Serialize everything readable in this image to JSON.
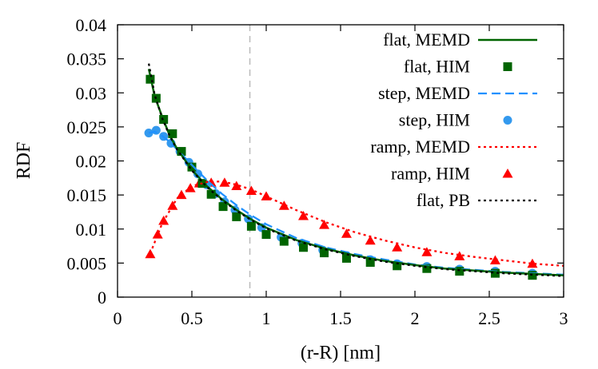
{
  "chart_data": {
    "type": "line",
    "xlabel": "(r-R) [nm]",
    "ylabel": "RDF",
    "xlim": [
      0,
      3
    ],
    "ylim": [
      0,
      0.04
    ],
    "x_ticks": [
      "0",
      "0.5",
      "1",
      "1.5",
      "2",
      "2.5",
      "3"
    ],
    "y_ticks": [
      "0",
      "0.005",
      "0.01",
      "0.015",
      "0.02",
      "0.025",
      "0.03",
      "0.035",
      "0.04"
    ],
    "grid": false,
    "legend_position": "top-right",
    "reference_line": {
      "x": 0.89,
      "style": "dashed",
      "color": "#bbbbbb"
    },
    "series": [
      {
        "name": "flat, MEMD",
        "style": "solid",
        "marker": "none",
        "color": "#006400",
        "x": [
          0.21,
          0.25,
          0.3,
          0.35,
          0.4,
          0.5,
          0.6,
          0.7,
          0.8,
          0.9,
          1.0,
          1.2,
          1.4,
          1.6,
          1.8,
          2.0,
          2.2,
          2.4,
          2.6,
          2.8,
          3.0
        ],
        "y": [
          0.0335,
          0.0295,
          0.0265,
          0.0238,
          0.0218,
          0.0187,
          0.0163,
          0.0144,
          0.0128,
          0.0114,
          0.0102,
          0.0084,
          0.0071,
          0.0061,
          0.0053,
          0.0047,
          0.0042,
          0.0039,
          0.0036,
          0.0034,
          0.0032
        ]
      },
      {
        "name": "flat, HIM",
        "style": "none",
        "marker": "square",
        "color": "#006400",
        "x": [
          0.22,
          0.26,
          0.31,
          0.37,
          0.43,
          0.5,
          0.57,
          0.63,
          0.71,
          0.8,
          0.9,
          1.0,
          1.12,
          1.25,
          1.39,
          1.54,
          1.7,
          1.88,
          2.08,
          2.3,
          2.54,
          2.79
        ],
        "y": [
          0.032,
          0.0292,
          0.0261,
          0.024,
          0.0214,
          0.0191,
          0.0167,
          0.0151,
          0.0133,
          0.0118,
          0.0104,
          0.0092,
          0.0082,
          0.0073,
          0.0065,
          0.0057,
          0.0051,
          0.0046,
          0.0042,
          0.0038,
          0.0035,
          0.0032
        ]
      },
      {
        "name": "step, MEMD",
        "style": "dashed",
        "marker": "none",
        "color": "#1e90ff",
        "x": [
          0.21,
          0.25,
          0.3,
          0.35,
          0.4,
          0.5,
          0.6,
          0.7,
          0.8,
          0.9,
          1.0,
          1.2,
          1.4,
          1.6,
          1.8,
          2.0,
          2.2,
          2.4,
          2.6,
          2.8,
          3.0
        ],
        "y": [
          0.0241,
          0.0243,
          0.0237,
          0.0228,
          0.0217,
          0.0194,
          0.0172,
          0.0152,
          0.0135,
          0.012,
          0.0107,
          0.0087,
          0.0073,
          0.0063,
          0.0055,
          0.0048,
          0.0043,
          0.004,
          0.0037,
          0.0035,
          0.0033
        ]
      },
      {
        "name": "step, HIM",
        "style": "none",
        "marker": "circle",
        "color": "#3399ee",
        "x": [
          0.21,
          0.26,
          0.31,
          0.36,
          0.42,
          0.48,
          0.54,
          0.6,
          0.66,
          0.72,
          0.79,
          0.88,
          0.97,
          1.1,
          1.24,
          1.38,
          1.54,
          1.7,
          1.88,
          2.08,
          2.3,
          2.54,
          2.79
        ],
        "y": [
          0.0241,
          0.0245,
          0.0236,
          0.0226,
          0.0214,
          0.0198,
          0.0181,
          0.0165,
          0.0152,
          0.014,
          0.0128,
          0.0115,
          0.0102,
          0.0088,
          0.0079,
          0.0069,
          0.0061,
          0.0055,
          0.0049,
          0.0045,
          0.0041,
          0.0038,
          0.0035
        ]
      },
      {
        "name": "ramp, MEMD",
        "style": "dotted",
        "marker": "none",
        "color": "#ff0000",
        "x": [
          0.22,
          0.3,
          0.4,
          0.5,
          0.6,
          0.7,
          0.8,
          0.9,
          1.0,
          1.2,
          1.4,
          1.6,
          1.8,
          2.0,
          2.2,
          2.4,
          2.6,
          2.8,
          3.0
        ],
        "y": [
          0.0064,
          0.0108,
          0.0145,
          0.0163,
          0.0169,
          0.017,
          0.0165,
          0.0158,
          0.0148,
          0.0128,
          0.011,
          0.0095,
          0.0083,
          0.0073,
          0.0065,
          0.0059,
          0.0054,
          0.0049,
          0.0046
        ]
      },
      {
        "name": "ramp, HIM",
        "style": "none",
        "marker": "triangle",
        "color": "#ff0000",
        "x": [
          0.22,
          0.27,
          0.31,
          0.37,
          0.43,
          0.49,
          0.55,
          0.63,
          0.72,
          0.8,
          0.9,
          1.0,
          1.12,
          1.25,
          1.39,
          1.54,
          1.7,
          1.88,
          2.08,
          2.3,
          2.54,
          2.79
        ],
        "y": [
          0.0063,
          0.0092,
          0.0112,
          0.0134,
          0.015,
          0.016,
          0.0167,
          0.0168,
          0.0168,
          0.0163,
          0.0156,
          0.0148,
          0.0134,
          0.0119,
          0.0106,
          0.0093,
          0.0083,
          0.0073,
          0.0066,
          0.006,
          0.0054,
          0.0049
        ]
      },
      {
        "name": "flat, PB",
        "style": "dotted",
        "marker": "none",
        "color": "#000000",
        "x": [
          0.21,
          0.25,
          0.3,
          0.35,
          0.4,
          0.5,
          0.6,
          0.7,
          0.8,
          0.9,
          1.0,
          1.2,
          1.4,
          1.6,
          1.8,
          2.0,
          2.2,
          2.4,
          2.6,
          2.8,
          3.0
        ],
        "y": [
          0.0343,
          0.0297,
          0.0263,
          0.0237,
          0.0217,
          0.0186,
          0.0162,
          0.0143,
          0.0127,
          0.0113,
          0.0101,
          0.0083,
          0.007,
          0.006,
          0.0052,
          0.0046,
          0.0041,
          0.0038,
          0.0035,
          0.0033,
          0.0031
        ]
      }
    ]
  }
}
